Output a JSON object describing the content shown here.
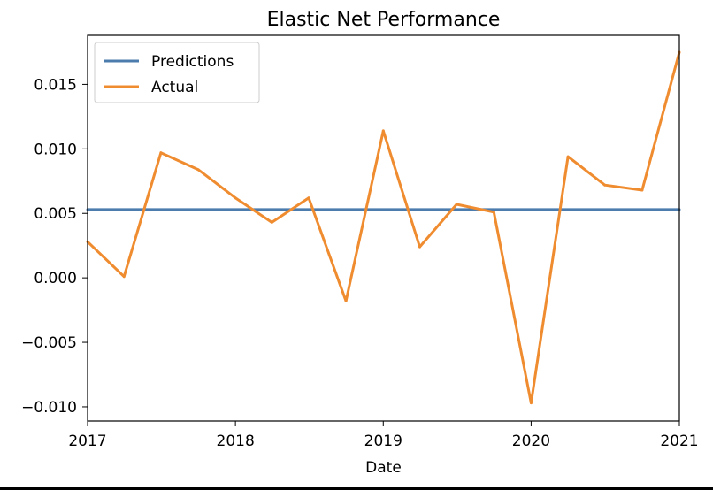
{
  "chart_data": {
    "type": "line",
    "title": "Elastic Net Performance",
    "xlabel": "Date",
    "ylabel": "",
    "x_ticks": [
      "2017",
      "2018",
      "2019",
      "2020",
      "2021"
    ],
    "y_ticks": [
      "0.015",
      "0.010",
      "0.005",
      "0.000",
      "−0.005",
      "−0.010"
    ],
    "y_tick_values": [
      0.015,
      0.01,
      0.005,
      0.0,
      -0.005,
      -0.01
    ],
    "xlim": [
      "2017-01-01",
      "2021-01-01"
    ],
    "ylim": [
      -0.0111,
      0.0188
    ],
    "grid": false,
    "legend_position": "upper-left",
    "series": [
      {
        "name": "Predictions",
        "color": "#4c7cad",
        "x": [
          "2017-01-01",
          "2021-01-01"
        ],
        "values": [
          0.0053,
          0.0053
        ]
      },
      {
        "name": "Actual",
        "color": "#f08c30",
        "x": [
          "2017-01-01",
          "2017-04-01",
          "2017-07-01",
          "2017-10-01",
          "2018-01-01",
          "2018-04-01",
          "2018-07-01",
          "2018-10-01",
          "2019-01-01",
          "2019-04-01",
          "2019-07-01",
          "2019-10-01",
          "2020-01-01",
          "2020-04-01",
          "2020-07-01",
          "2020-10-01",
          "2021-01-01"
        ],
        "values": [
          0.0028,
          0.0001,
          0.0097,
          0.0084,
          0.0062,
          0.0043,
          0.0062,
          -0.0018,
          0.0114,
          0.0024,
          0.0057,
          0.0051,
          -0.0097,
          0.0094,
          0.0072,
          0.0068,
          0.0175
        ]
      }
    ]
  }
}
